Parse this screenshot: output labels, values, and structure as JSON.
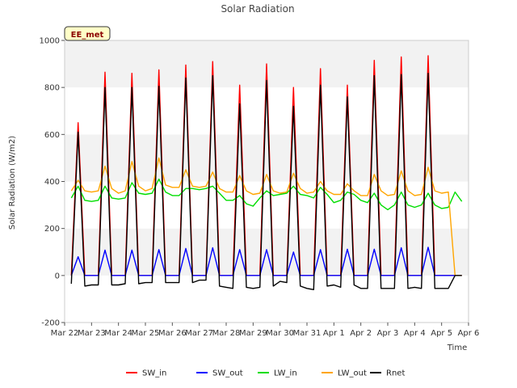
{
  "chart_data": {
    "type": "line",
    "title": "Solar Radiation",
    "xlabel": "Time",
    "ylabel": "Solar Radiation (W/m2)",
    "badge": "EE_met",
    "ylim": [
      -200,
      1000
    ],
    "yticks": [
      -200,
      0,
      200,
      400,
      600,
      800,
      1000
    ],
    "xlim": [
      "2024-03-22",
      "2024-04-06"
    ],
    "xticks": [
      "Mar 22",
      "Mar 23",
      "Mar 24",
      "Mar 25",
      "Mar 26",
      "Mar 27",
      "Mar 28",
      "Mar 29",
      "Mar 30",
      "Mar 31",
      "Apr 1",
      "Apr 2",
      "Apr 3",
      "Apr 4",
      "Apr 5",
      "Apr 6"
    ],
    "grid": "horizontal bands",
    "legend_position": "bottom",
    "x": [
      "Mar 22 06:00",
      "Mar 22 12:00",
      "Mar 22 18:00",
      "Mar 23 00:00",
      "Mar 23 06:00",
      "Mar 23 12:00",
      "Mar 23 18:00",
      "Mar 24 00:00",
      "Mar 24 06:00",
      "Mar 24 12:00",
      "Mar 24 18:00",
      "Mar 25 00:00",
      "Mar 25 06:00",
      "Mar 25 12:00",
      "Mar 25 18:00",
      "Mar 26 00:00",
      "Mar 26 06:00",
      "Mar 26 12:00",
      "Mar 26 18:00",
      "Mar 27 00:00",
      "Mar 27 06:00",
      "Mar 27 12:00",
      "Mar 27 18:00",
      "Mar 28 00:00",
      "Mar 28 06:00",
      "Mar 28 12:00",
      "Mar 28 18:00",
      "Mar 29 00:00",
      "Mar 29 06:00",
      "Mar 29 12:00",
      "Mar 29 18:00",
      "Mar 30 00:00",
      "Mar 30 06:00",
      "Mar 30 12:00",
      "Mar 30 18:00",
      "Mar 31 00:00",
      "Mar 31 06:00",
      "Mar 31 12:00",
      "Mar 31 18:00",
      "Apr 1 00:00",
      "Apr 1 06:00",
      "Apr 1 12:00",
      "Apr 1 18:00",
      "Apr 2 00:00",
      "Apr 2 06:00",
      "Apr 2 12:00",
      "Apr 2 18:00",
      "Apr 3 00:00",
      "Apr 3 06:00",
      "Apr 3 12:00",
      "Apr 3 18:00",
      "Apr 4 00:00",
      "Apr 4 06:00",
      "Apr 4 12:00",
      "Apr 4 18:00",
      "Apr 5 00:00",
      "Apr 5 06:00",
      "Apr 5 12:00",
      "Apr 5 18:00"
    ],
    "series": [
      {
        "name": "SW_in",
        "color": "#ff0000",
        "values": [
          0,
          650,
          0,
          0,
          0,
          865,
          0,
          0,
          0,
          860,
          0,
          0,
          0,
          875,
          0,
          0,
          0,
          895,
          0,
          0,
          0,
          910,
          0,
          0,
          0,
          810,
          0,
          0,
          0,
          900,
          0,
          0,
          0,
          800,
          0,
          0,
          0,
          880,
          0,
          0,
          0,
          810,
          0,
          0,
          0,
          915,
          0,
          0,
          0,
          930,
          0,
          0,
          0,
          935,
          0,
          0,
          0,
          0,
          0
        ]
      },
      {
        "name": "SW_out",
        "color": "#0000ff",
        "values": [
          0,
          80,
          0,
          0,
          0,
          108,
          0,
          0,
          0,
          108,
          0,
          0,
          0,
          110,
          0,
          0,
          0,
          115,
          0,
          0,
          0,
          118,
          0,
          0,
          0,
          110,
          0,
          0,
          0,
          110,
          0,
          0,
          0,
          100,
          0,
          0,
          0,
          110,
          0,
          0,
          0,
          112,
          0,
          0,
          0,
          112,
          0,
          0,
          0,
          118,
          0,
          0,
          0,
          120,
          0,
          0,
          0,
          0,
          0
        ]
      },
      {
        "name": "LW_in",
        "color": "#00dd00",
        "values": [
          330,
          380,
          320,
          315,
          320,
          380,
          330,
          325,
          330,
          395,
          350,
          345,
          350,
          410,
          355,
          340,
          340,
          370,
          370,
          365,
          370,
          380,
          350,
          320,
          320,
          340,
          305,
          295,
          330,
          360,
          340,
          345,
          350,
          380,
          345,
          340,
          330,
          375,
          345,
          310,
          320,
          355,
          345,
          320,
          310,
          350,
          300,
          280,
          300,
          355,
          300,
          290,
          300,
          350,
          300,
          285,
          290,
          355,
          315
        ]
      },
      {
        "name": "LW_out",
        "color": "#ffa500",
        "values": [
          360,
          405,
          360,
          355,
          360,
          465,
          370,
          350,
          360,
          485,
          380,
          360,
          370,
          500,
          385,
          375,
          375,
          450,
          380,
          375,
          380,
          440,
          370,
          355,
          355,
          425,
          360,
          345,
          350,
          430,
          360,
          350,
          355,
          435,
          370,
          350,
          355,
          400,
          360,
          345,
          345,
          390,
          360,
          340,
          340,
          430,
          360,
          340,
          345,
          445,
          360,
          340,
          345,
          460,
          360,
          350,
          355,
          0,
          0
        ]
      },
      {
        "name": "Rnet",
        "color": "#000000",
        "values": [
          -35,
          610,
          -45,
          -40,
          -40,
          800,
          -40,
          -40,
          -35,
          800,
          -35,
          -30,
          -30,
          805,
          -30,
          -30,
          -30,
          840,
          -30,
          -20,
          -20,
          850,
          -45,
          -50,
          -55,
          730,
          -50,
          -55,
          -50,
          830,
          -45,
          -25,
          -30,
          720,
          -45,
          -55,
          -60,
          810,
          -45,
          -40,
          -50,
          760,
          -40,
          -55,
          -55,
          850,
          -55,
          -55,
          -55,
          855,
          -55,
          -50,
          -55,
          860,
          -55,
          -55,
          -55,
          0,
          0
        ]
      }
    ]
  }
}
